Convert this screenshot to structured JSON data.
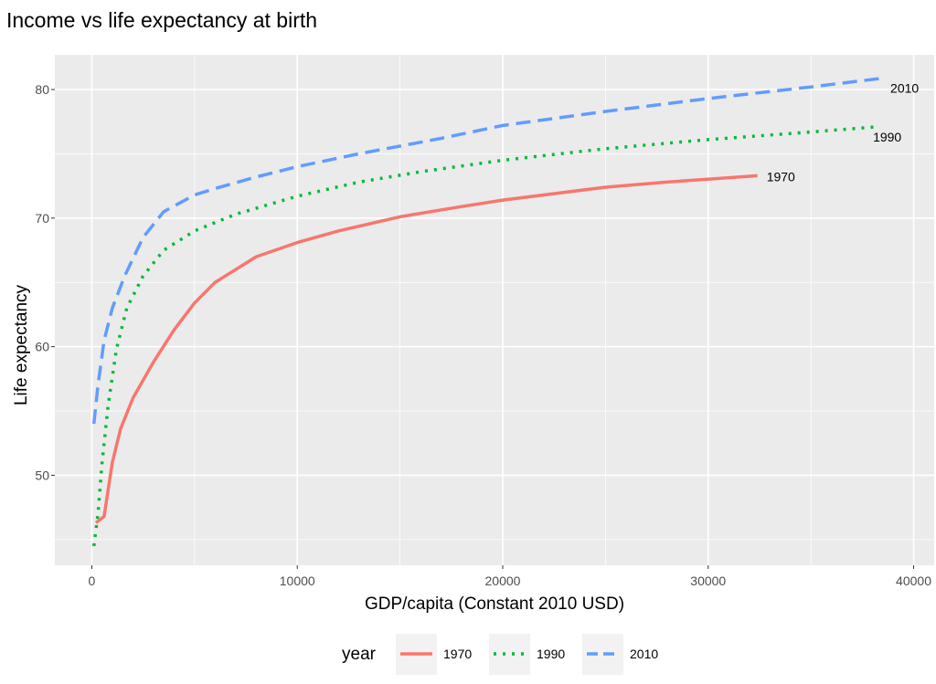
{
  "chart_data": {
    "type": "line",
    "title": "Income vs life expectancy at birth",
    "xlabel": "GDP/capita (Constant 2010 USD)",
    "ylabel": "Life expectancy",
    "xlim": [
      -1800,
      41000
    ],
    "ylim": [
      43.0,
      82.7
    ],
    "x_ticks": [
      0,
      10000,
      20000,
      30000,
      40000
    ],
    "x_tick_labels": [
      "0",
      "10000",
      "20000",
      "30000",
      "40000"
    ],
    "y_ticks": [
      50,
      60,
      70,
      80
    ],
    "y_tick_labels": [
      "50",
      "60",
      "70",
      "80"
    ],
    "grid": true,
    "panel_background": "#ebebeb",
    "legend": {
      "title": "year",
      "position": "bottom"
    },
    "series": [
      {
        "name": "1970",
        "color": "#f8766d",
        "dash": "solid",
        "label": "1970",
        "points": [
          [
            200,
            46.3
          ],
          [
            600,
            46.8
          ],
          [
            1000,
            51
          ],
          [
            1400,
            53.6
          ],
          [
            2000,
            56
          ],
          [
            3000,
            58.8
          ],
          [
            4000,
            61.3
          ],
          [
            5000,
            63.4
          ],
          [
            6000,
            65
          ],
          [
            8000,
            67
          ],
          [
            10000,
            68.1
          ],
          [
            12000,
            69
          ],
          [
            15000,
            70.1
          ],
          [
            18000,
            70.9
          ],
          [
            20000,
            71.4
          ],
          [
            25000,
            72.4
          ],
          [
            28000,
            72.8
          ],
          [
            32400,
            73.3
          ]
        ]
      },
      {
        "name": "1990",
        "color": "#00ba38",
        "dash": "dotted",
        "label": "1990",
        "points": [
          [
            100,
            44.5
          ],
          [
            300,
            47
          ],
          [
            500,
            51
          ],
          [
            800,
            55.5
          ],
          [
            1200,
            59.8
          ],
          [
            1700,
            63
          ],
          [
            2500,
            65.5
          ],
          [
            3500,
            67.5
          ],
          [
            5000,
            69
          ],
          [
            7000,
            70.3
          ],
          [
            10000,
            71.7
          ],
          [
            13000,
            72.8
          ],
          [
            16000,
            73.6
          ],
          [
            20000,
            74.5
          ],
          [
            25000,
            75.4
          ],
          [
            30000,
            76.1
          ],
          [
            35000,
            76.7
          ],
          [
            38200,
            77.1
          ]
        ]
      },
      {
        "name": "2010",
        "color": "#619cff",
        "dash": "dashed",
        "label": "2010",
        "points": [
          [
            100,
            54
          ],
          [
            300,
            57
          ],
          [
            600,
            60.5
          ],
          [
            1000,
            63
          ],
          [
            1600,
            65.5
          ],
          [
            2500,
            68.5
          ],
          [
            3500,
            70.5
          ],
          [
            5000,
            71.8
          ],
          [
            6000,
            72.3
          ],
          [
            8000,
            73.2
          ],
          [
            10000,
            74
          ],
          [
            13000,
            75
          ],
          [
            17000,
            76.2
          ],
          [
            20000,
            77.2
          ],
          [
            25000,
            78.3
          ],
          [
            30000,
            79.3
          ],
          [
            35000,
            80.2
          ],
          [
            38600,
            80.9
          ]
        ]
      }
    ]
  }
}
